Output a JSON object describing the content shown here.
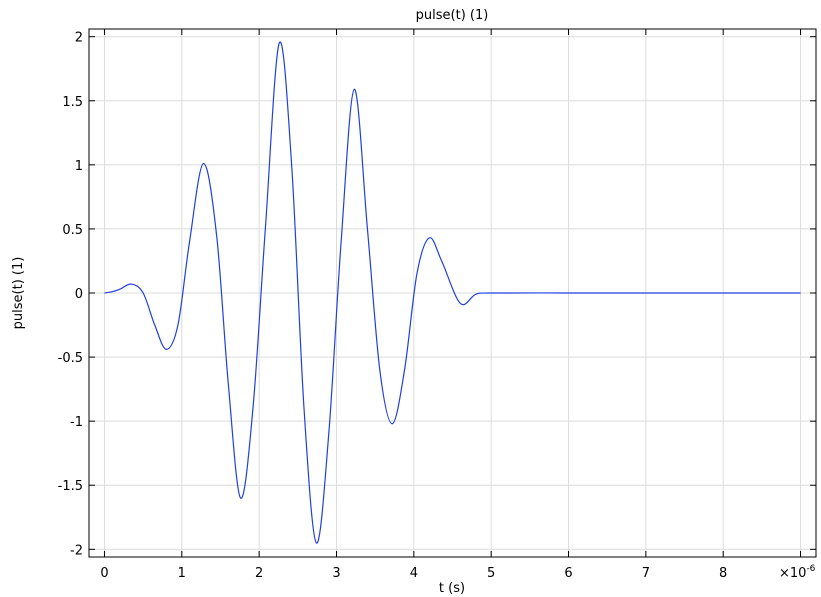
{
  "chart_data": {
    "type": "line",
    "title": "pulse(t) (1)",
    "xlabel": "t (s)",
    "ylabel": "pulse(t) (1)",
    "x_multiplier_label": "×10",
    "x_multiplier_exponent": "-6",
    "xlim": [
      -2e-07,
      9.2e-06
    ],
    "ylim": [
      -2.06,
      2.06
    ],
    "grid": true,
    "x_ticks": [
      {
        "value": 0,
        "label": "0"
      },
      {
        "value": 1e-06,
        "label": "1"
      },
      {
        "value": 2e-06,
        "label": "2"
      },
      {
        "value": 3e-06,
        "label": "3"
      },
      {
        "value": 4e-06,
        "label": "4"
      },
      {
        "value": 5e-06,
        "label": "5"
      },
      {
        "value": 6e-06,
        "label": "6"
      },
      {
        "value": 7e-06,
        "label": "7"
      },
      {
        "value": 8e-06,
        "label": "8"
      },
      {
        "value": 9e-06,
        "label": ""
      }
    ],
    "y_ticks": [
      {
        "value": 2,
        "label": "2"
      },
      {
        "value": 1.5,
        "label": "1.5"
      },
      {
        "value": 1,
        "label": "1"
      },
      {
        "value": 0.5,
        "label": "0.5"
      },
      {
        "value": 0,
        "label": "0"
      },
      {
        "value": -0.5,
        "label": "-0.5"
      },
      {
        "value": -1,
        "label": "-1"
      },
      {
        "value": -1.5,
        "label": "-1.5"
      },
      {
        "value": -2,
        "label": "-2"
      }
    ],
    "series": [
      {
        "color": "#1f3fe0",
        "x": [
          0,
          1e-07,
          2e-07,
          3.5e-07,
          5e-07,
          6.5e-07,
          8e-07,
          9.5e-07,
          1.1e-06,
          1.28e-06,
          1.45e-06,
          1.6e-06,
          1.76e-06,
          1.92e-06,
          2.08e-06,
          2.26e-06,
          2.42e-06,
          2.58e-06,
          2.74e-06,
          2.9e-06,
          3.06e-06,
          3.23e-06,
          3.4e-06,
          3.56e-06,
          3.72e-06,
          3.88e-06,
          4.04e-06,
          4.2e-06,
          4.36e-06,
          4.6e-06,
          4.8e-06,
          5e-06,
          6e-06,
          7e-06,
          8e-06,
          9e-06
        ],
        "y": [
          0,
          0.01,
          0.03,
          0.07,
          0,
          -0.25,
          -0.44,
          -0.25,
          0.4,
          1.01,
          0.45,
          -0.7,
          -1.6,
          -0.9,
          0.5,
          1.95,
          1.0,
          -0.9,
          -1.95,
          -1.1,
          0.4,
          1.59,
          0.5,
          -0.6,
          -1.02,
          -0.6,
          0.15,
          0.43,
          0.25,
          -0.08,
          -0.01,
          0,
          0,
          0,
          0,
          0
        ]
      }
    ]
  }
}
